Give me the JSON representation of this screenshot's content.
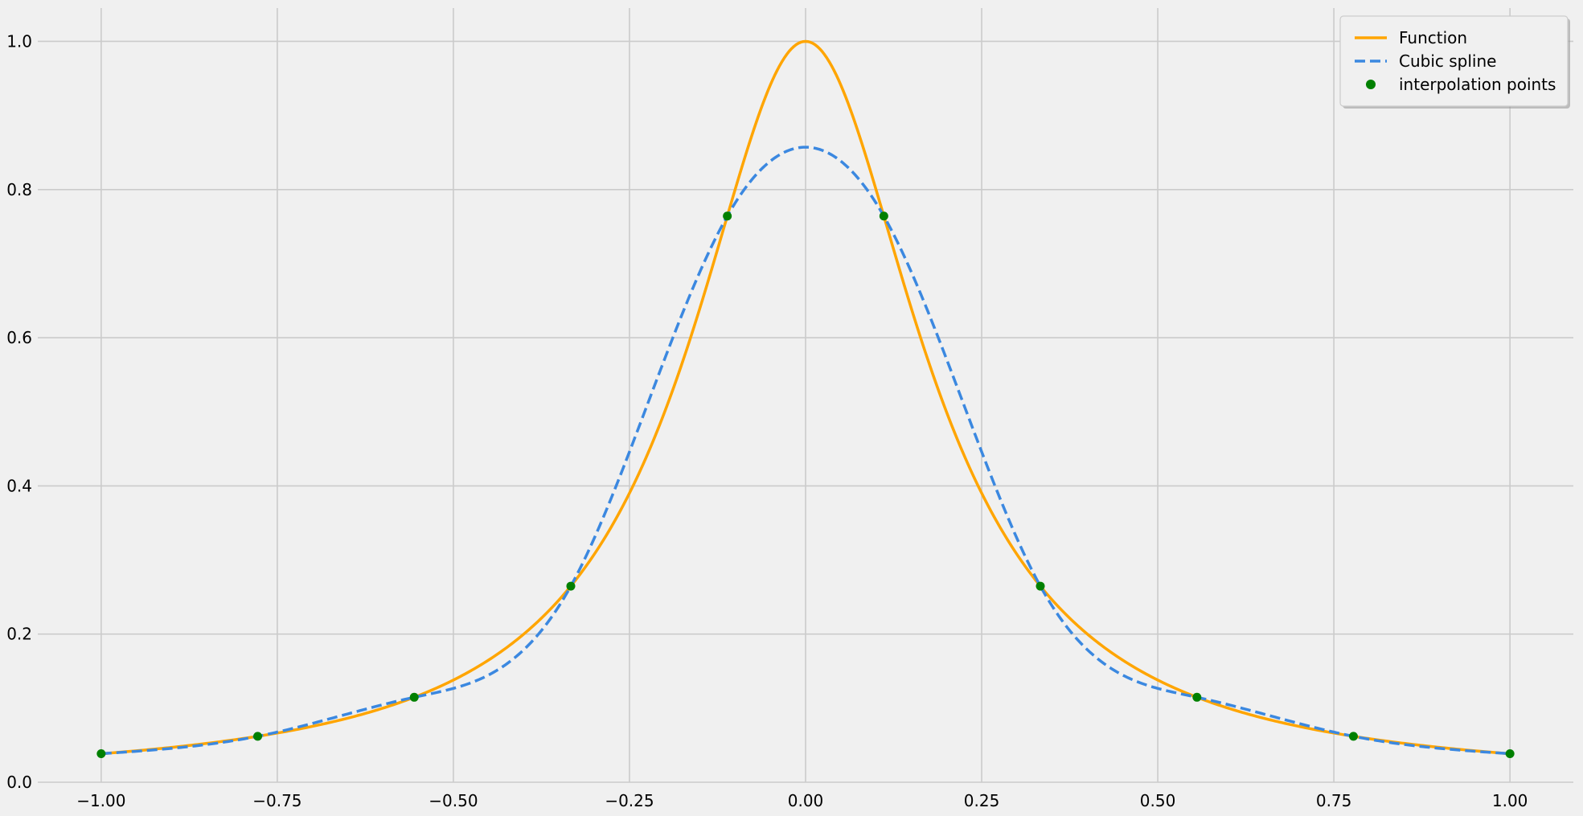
{
  "chart_data": {
    "type": "line",
    "title": "",
    "xlabel": "",
    "ylabel": "",
    "xlim": [
      -1.09,
      1.09
    ],
    "ylim": [
      0.0,
      1.045
    ],
    "grid": true,
    "x_ticks": [
      -1.0,
      -0.75,
      -0.5,
      -0.25,
      0.0,
      0.25,
      0.5,
      0.75,
      1.0
    ],
    "x_tick_labels": [
      "−1.00",
      "−0.75",
      "−0.50",
      "−0.25",
      "0.00",
      "0.25",
      "0.50",
      "0.75",
      "1.00"
    ],
    "y_ticks": [
      0.0,
      0.2,
      0.4,
      0.6,
      0.8,
      1.0
    ],
    "y_tick_labels": [
      "0.0",
      "0.2",
      "0.4",
      "0.6",
      "0.8",
      "1.0"
    ],
    "function": {
      "name": "Function",
      "expression": "1/(1+25x^2)",
      "color": "#FFA500",
      "x_range": [
        -1.0,
        1.0
      ]
    },
    "spline": {
      "name": "Cubic spline",
      "kind": "natural cubic spline",
      "color": "#3B88E0",
      "dashed": true
    },
    "points": {
      "name": "interpolation points",
      "color": "#008000",
      "x": [
        -1.0,
        -0.7778,
        -0.5556,
        -0.3333,
        -0.1111,
        0.1111,
        0.3333,
        0.5556,
        0.7778,
        1.0
      ],
      "y": [
        0.0385,
        0.062,
        0.1147,
        0.2647,
        0.7642,
        0.7642,
        0.2647,
        0.1147,
        0.062,
        0.0385
      ]
    },
    "legend": {
      "position": "top-right",
      "entries": [
        "Function",
        "Cubic spline",
        "interpolation points"
      ]
    }
  },
  "colors": {
    "background": "#f0f0f0",
    "grid": "#cbcbcb",
    "legend_bg": "#f0f0f0",
    "legend_border": "#cccccc"
  }
}
